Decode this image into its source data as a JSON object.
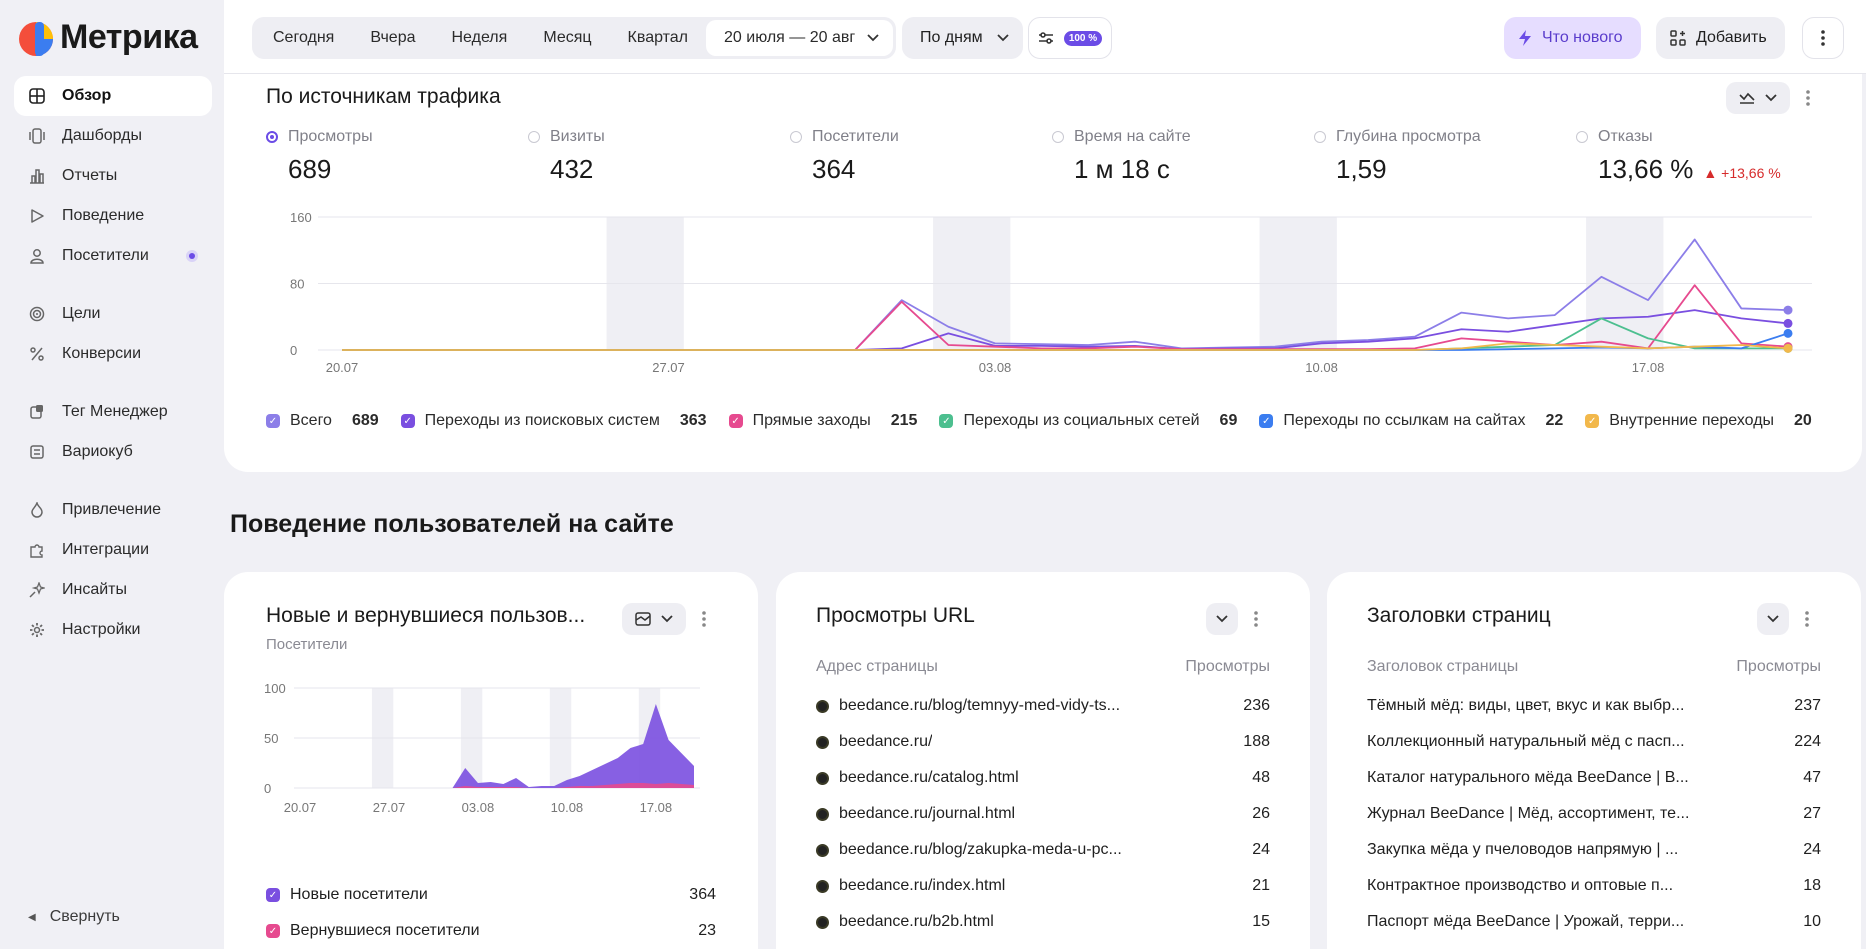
{
  "app": {
    "name": "Метрика"
  },
  "sidebar": {
    "items": [
      {
        "label": "Обзор",
        "icon": "grid-icon",
        "active": true
      },
      {
        "label": "Дашборды",
        "icon": "dashboard-icon"
      },
      {
        "label": "Отчеты",
        "icon": "bar-chart-icon"
      },
      {
        "label": "Поведение",
        "icon": "play-icon"
      },
      {
        "label": "Посетители",
        "icon": "person-icon",
        "badge": true
      },
      {
        "label": "Цели",
        "icon": "target-icon"
      },
      {
        "label": "Конверсии",
        "icon": "percent-icon"
      },
      {
        "label": "Тег Менеджер",
        "icon": "tag-manager-icon"
      },
      {
        "label": "Вариокуб",
        "icon": "variocube-icon"
      },
      {
        "label": "Привлечение",
        "icon": "flame-icon"
      },
      {
        "label": "Интеграции",
        "icon": "puzzle-icon"
      },
      {
        "label": "Инсайты",
        "icon": "sparkle-icon"
      },
      {
        "label": "Настройки",
        "icon": "gear-icon"
      }
    ],
    "collapse_label": "Свернуть"
  },
  "topbar": {
    "periods": [
      "Сегодня",
      "Вчера",
      "Неделя",
      "Месяц",
      "Квартал"
    ],
    "date_range": "20 июля — 20 авг",
    "detail": "По дням",
    "sampling": "100 %",
    "whats_new": "Что нового",
    "add": "Добавить"
  },
  "traffic": {
    "title": "По источникам трафика",
    "metrics": [
      {
        "label": "Просмотры",
        "value": "689",
        "selected": true
      },
      {
        "label": "Визиты",
        "value": "432"
      },
      {
        "label": "Посетители",
        "value": "364"
      },
      {
        "label": "Время на сайте",
        "value": "1 м 18 с"
      },
      {
        "label": "Глубина просмотра",
        "value": "1,59"
      },
      {
        "label": "Отказы",
        "value": "13,66 %",
        "delta": "▲ +13,66 %"
      }
    ],
    "legend": [
      {
        "label": "Всего",
        "value": "689",
        "color": "#8c7ee8"
      },
      {
        "label": "Переходы из поисковых систем",
        "value": "363",
        "color": "#7a4fe0"
      },
      {
        "label": "Прямые заходы",
        "value": "215",
        "color": "#e64a8f"
      },
      {
        "label": "Переходы из социальных сетей",
        "value": "69",
        "color": "#4cbf8f"
      },
      {
        "label": "Переходы по ссылкам на сайтах",
        "value": "22",
        "color": "#3b7df0"
      },
      {
        "label": "Внутренние переходы",
        "value": "20",
        "color": "#f2b84b"
      }
    ]
  },
  "chart_data": [
    {
      "type": "line",
      "ylim": [
        0,
        160
      ],
      "yticks": [
        "0",
        "80",
        "160"
      ],
      "xticks": [
        "20.07",
        "27.07",
        "03.08",
        "10.08",
        "17.08"
      ],
      "x": [
        "20.07",
        "21.07",
        "22.07",
        "23.07",
        "24.07",
        "25.07",
        "26.07",
        "27.07",
        "28.07",
        "29.07",
        "30.07",
        "31.07",
        "01.08",
        "02.08",
        "03.08",
        "04.08",
        "05.08",
        "06.08",
        "07.08",
        "08.08",
        "09.08",
        "10.08",
        "11.08",
        "12.08",
        "13.08",
        "14.08",
        "15.08",
        "16.08",
        "17.08",
        "18.08",
        "19.08",
        "20.08"
      ],
      "series": [
        {
          "name": "Всего",
          "color": "#8c7ee8",
          "values": [
            0,
            0,
            0,
            0,
            0,
            0,
            0,
            0,
            0,
            0,
            0,
            0,
            60,
            28,
            8,
            7,
            6,
            10,
            2,
            3,
            4,
            10,
            12,
            16,
            45,
            38,
            42,
            88,
            60,
            133,
            50,
            48
          ]
        },
        {
          "name": "Переходы из поисковых систем",
          "color": "#7a4fe0",
          "values": [
            0,
            0,
            0,
            0,
            0,
            0,
            0,
            0,
            0,
            0,
            0,
            0,
            2,
            20,
            5,
            5,
            4,
            5,
            1,
            2,
            2,
            8,
            10,
            14,
            25,
            22,
            30,
            38,
            40,
            48,
            38,
            32
          ]
        },
        {
          "name": "Прямые заходы",
          "color": "#e64a8f",
          "values": [
            0,
            0,
            0,
            0,
            0,
            0,
            0,
            0,
            0,
            0,
            0,
            0,
            58,
            6,
            4,
            2,
            2,
            4,
            1,
            1,
            1,
            1,
            1,
            2,
            14,
            10,
            6,
            10,
            2,
            78,
            8,
            4
          ]
        },
        {
          "name": "Переходы из социальных сетей",
          "color": "#4cbf8f",
          "values": [
            0,
            0,
            0,
            0,
            0,
            0,
            0,
            0,
            0,
            0,
            0,
            0,
            0,
            0,
            0,
            0,
            0,
            0,
            0,
            0,
            0,
            0,
            0,
            0,
            2,
            4,
            6,
            38,
            14,
            2,
            2,
            2
          ]
        },
        {
          "name": "Переходы по ссылкам на сайтах",
          "color": "#3b7df0",
          "values": [
            0,
            0,
            0,
            0,
            0,
            0,
            0,
            0,
            0,
            0,
            0,
            0,
            0,
            0,
            0,
            0,
            0,
            0,
            0,
            0,
            0,
            0,
            0,
            0,
            0,
            1,
            2,
            3,
            2,
            4,
            2,
            20
          ]
        },
        {
          "name": "Внутренние переходы",
          "color": "#f2b84b",
          "values": [
            0,
            0,
            0,
            0,
            0,
            0,
            0,
            0,
            0,
            0,
            0,
            0,
            0,
            0,
            0,
            0,
            0,
            0,
            0,
            0,
            0,
            0,
            0,
            0,
            2,
            8,
            6,
            4,
            2,
            4,
            6,
            2
          ]
        }
      ]
    },
    {
      "type": "area",
      "ylim": [
        0,
        100
      ],
      "yticks": [
        "0",
        "50",
        "100"
      ],
      "xticks": [
        "20.07",
        "27.07",
        "03.08",
        "10.08",
        "17.08"
      ],
      "series": [
        {
          "name": "Новые посетители",
          "color": "#7a4fe0",
          "values": [
            0,
            0,
            0,
            0,
            0,
            0,
            0,
            0,
            0,
            0,
            0,
            0,
            0,
            20,
            5,
            6,
            4,
            10,
            1,
            2,
            2,
            8,
            12,
            18,
            24,
            30,
            40,
            44,
            84,
            48,
            35,
            22
          ]
        },
        {
          "name": "Вернувшиеся посетители",
          "color": "#e64a8f",
          "values": [
            0,
            0,
            0,
            0,
            0,
            0,
            0,
            0,
            0,
            0,
            0,
            0,
            0,
            2,
            1,
            1,
            1,
            1,
            0,
            0,
            0,
            1,
            2,
            2,
            3,
            4,
            5,
            5,
            4,
            5,
            4,
            3
          ]
        }
      ]
    }
  ],
  "behavior": {
    "section_title": "Поведение пользователей на сайте",
    "new_returning": {
      "title": "Новые и вернувшиеся пользов...",
      "subtitle": "Посетители",
      "legend": [
        {
          "label": "Новые посетители",
          "value": "364"
        },
        {
          "label": "Вернувшиеся посетители",
          "value": "23"
        }
      ]
    },
    "url_views": {
      "title": "Просмотры URL",
      "col_left": "Адрес страницы",
      "col_right": "Просмотры",
      "rows": [
        {
          "label": "beedance.ru/blog/temnyy-med-vidy-ts...",
          "value": "236"
        },
        {
          "label": "beedance.ru/",
          "value": "188"
        },
        {
          "label": "beedance.ru/catalog.html",
          "value": "48"
        },
        {
          "label": "beedance.ru/journal.html",
          "value": "26"
        },
        {
          "label": "beedance.ru/blog/zakupka-meda-u-pc...",
          "value": "24"
        },
        {
          "label": "beedance.ru/index.html",
          "value": "21"
        },
        {
          "label": "beedance.ru/b2b.html",
          "value": "15"
        }
      ]
    },
    "page_titles": {
      "title": "Заголовки страниц",
      "col_left": "Заголовок страницы",
      "col_right": "Просмотры",
      "rows": [
        {
          "label": "Тёмный мёд: виды, цвет, вкус и как выбр...",
          "value": "237"
        },
        {
          "label": "Коллекционный натуральный мёд с пасп...",
          "value": "224"
        },
        {
          "label": "Каталог натурального мёда BeeDance | В...",
          "value": "47"
        },
        {
          "label": "Журнал BeeDance | Мёд, ассортимент, те...",
          "value": "27"
        },
        {
          "label": "Закупка мёда у пчеловодов напрямую | ...",
          "value": "24"
        },
        {
          "label": "Контрактное производство и оптовые п...",
          "value": "18"
        },
        {
          "label": "Паспорт мёда BeeDance | Урожай, терри...",
          "value": "10"
        }
      ]
    }
  }
}
